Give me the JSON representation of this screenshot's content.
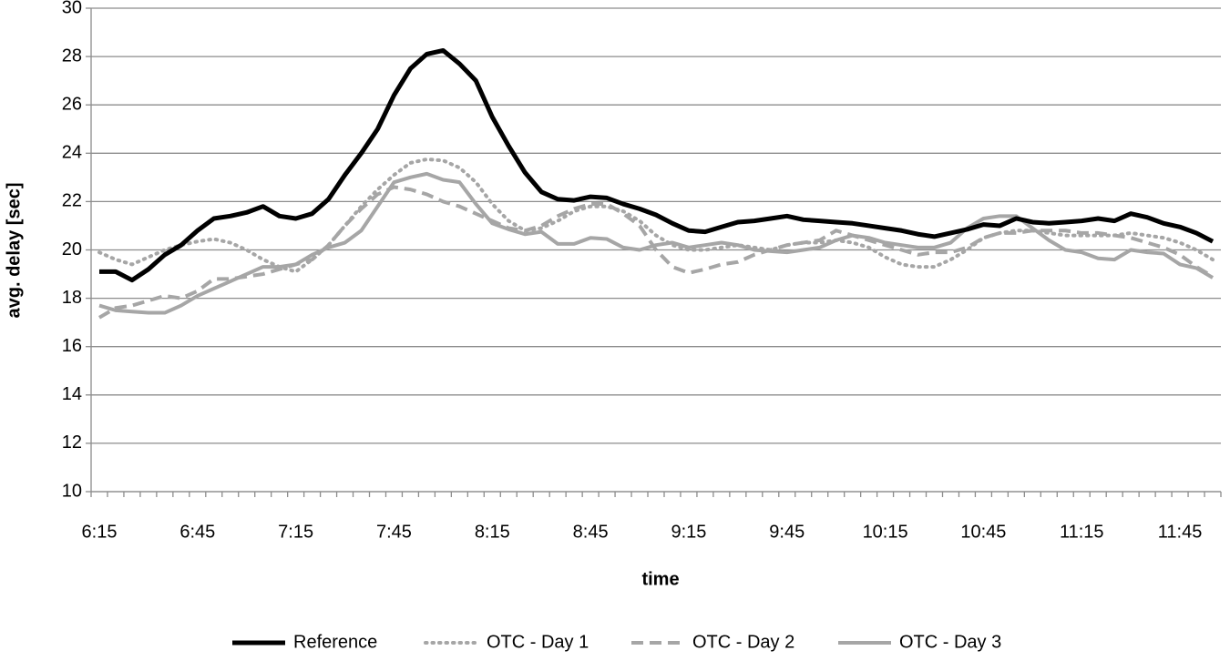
{
  "chart_data": {
    "type": "line",
    "x_label": "time",
    "y_label": "avg. delay [sec]",
    "categories": [
      "6:15",
      null,
      null,
      null,
      null,
      null,
      "6:45",
      null,
      null,
      null,
      null,
      null,
      "7:15",
      null,
      null,
      null,
      null,
      null,
      "7:45",
      null,
      null,
      null,
      null,
      null,
      "8:15",
      null,
      null,
      null,
      null,
      null,
      "8:45",
      null,
      null,
      null,
      null,
      null,
      "9:15",
      null,
      null,
      null,
      null,
      null,
      "9:45",
      null,
      null,
      null,
      null,
      null,
      "10:15",
      null,
      null,
      null,
      null,
      null,
      "10:45",
      null,
      null,
      null,
      null,
      null,
      "11:15",
      null,
      null,
      null,
      null,
      null,
      "11:45",
      null,
      null
    ],
    "ylim": [
      10,
      30
    ],
    "yticks": [
      10,
      12,
      14,
      16,
      18,
      20,
      22,
      24,
      26,
      28,
      30
    ],
    "grid": true,
    "legend": "bottom",
    "series": [
      {
        "name": "Reference",
        "color": "#000000",
        "style": "solid",
        "values": [
          19.1,
          19.1,
          18.75,
          19.2,
          19.8,
          20.2,
          20.8,
          21.3,
          21.4,
          21.55,
          21.8,
          21.4,
          21.3,
          21.5,
          22.1,
          23.1,
          24.0,
          25.0,
          26.4,
          27.5,
          28.1,
          28.25,
          27.7,
          27.0,
          25.5,
          24.3,
          23.2,
          22.4,
          22.1,
          22.05,
          22.2,
          22.15,
          21.9,
          21.7,
          21.45,
          21.1,
          20.8,
          20.75,
          20.95,
          21.15,
          21.2,
          21.3,
          21.4,
          21.25,
          21.2,
          21.15,
          21.1,
          21.0,
          20.9,
          20.8,
          20.65,
          20.55,
          20.7,
          20.85,
          21.05,
          21.0,
          21.3,
          21.15,
          21.1,
          21.15,
          21.2,
          21.3,
          21.2,
          21.5,
          21.35,
          21.1,
          20.95,
          20.7,
          20.35
        ]
      },
      {
        "name": "OTC - Day 1",
        "color": "#a6a6a6",
        "style": "dotted",
        "values": [
          19.9,
          19.6,
          19.4,
          19.7,
          20.0,
          20.2,
          20.35,
          20.45,
          20.3,
          20.0,
          19.6,
          19.3,
          19.1,
          19.6,
          20.2,
          21.0,
          21.8,
          22.5,
          23.1,
          23.6,
          23.75,
          23.7,
          23.4,
          22.8,
          21.9,
          21.2,
          20.8,
          20.9,
          21.2,
          21.6,
          21.8,
          21.8,
          21.6,
          21.2,
          20.6,
          20.2,
          20.0,
          20.0,
          20.1,
          20.2,
          20.1,
          20.0,
          20.2,
          20.3,
          20.3,
          20.4,
          20.3,
          20.1,
          19.7,
          19.4,
          19.3,
          19.3,
          19.6,
          20.0,
          20.5,
          20.7,
          20.8,
          20.8,
          20.7,
          20.6,
          20.6,
          20.6,
          20.6,
          20.7,
          20.6,
          20.5,
          20.3,
          20.0,
          19.6
        ]
      },
      {
        "name": "OTC - Day 2",
        "color": "#a6a6a6",
        "style": "dashed",
        "values": [
          17.2,
          17.6,
          17.7,
          17.9,
          18.1,
          18.0,
          18.3,
          18.8,
          18.8,
          18.9,
          19.0,
          19.2,
          19.4,
          19.6,
          20.2,
          21.0,
          21.7,
          22.3,
          22.6,
          22.5,
          22.3,
          22.0,
          21.8,
          21.5,
          21.2,
          20.9,
          20.8,
          21.0,
          21.4,
          21.7,
          21.9,
          21.9,
          21.5,
          21.0,
          20.0,
          19.3,
          19.05,
          19.2,
          19.4,
          19.5,
          19.8,
          20.0,
          20.2,
          20.3,
          20.4,
          20.8,
          20.6,
          20.4,
          20.2,
          20.0,
          19.8,
          19.9,
          19.9,
          20.1,
          20.5,
          20.7,
          20.7,
          20.8,
          20.8,
          20.8,
          20.7,
          20.7,
          20.6,
          20.5,
          20.3,
          20.1,
          19.8,
          19.3,
          18.9
        ]
      },
      {
        "name": "OTC - Day 3",
        "color": "#a6a6a6",
        "style": "solid",
        "values": [
          17.7,
          17.5,
          17.45,
          17.4,
          17.4,
          17.7,
          18.1,
          18.4,
          18.7,
          19.0,
          19.3,
          19.3,
          19.4,
          19.8,
          20.1,
          20.3,
          20.8,
          21.8,
          22.8,
          23.0,
          23.15,
          22.9,
          22.8,
          21.9,
          21.1,
          20.85,
          20.65,
          20.75,
          20.25,
          20.25,
          20.5,
          20.45,
          20.1,
          20.0,
          20.2,
          20.3,
          20.1,
          20.2,
          20.3,
          20.2,
          20.0,
          19.95,
          19.9,
          20.0,
          20.1,
          20.4,
          20.6,
          20.5,
          20.3,
          20.2,
          20.1,
          20.1,
          20.3,
          20.9,
          21.3,
          21.4,
          21.4,
          20.9,
          20.4,
          20.0,
          19.9,
          19.65,
          19.6,
          20.0,
          19.9,
          19.85,
          19.4,
          19.25,
          18.85
        ]
      }
    ]
  }
}
